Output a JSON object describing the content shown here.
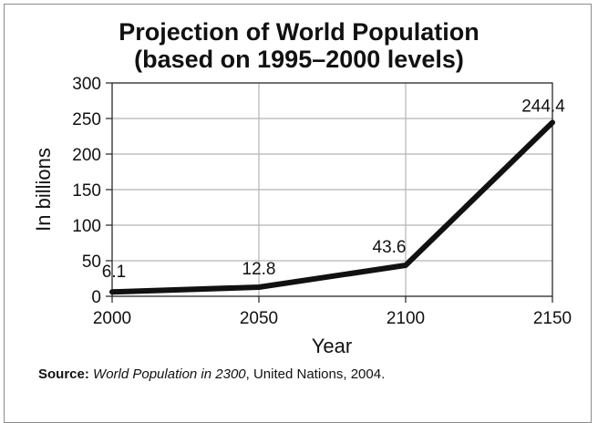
{
  "chart_data": {
    "type": "line",
    "title": "Projection of World Population",
    "subtitle": "(based on 1995–2000 levels)",
    "xlabel": "Year",
    "ylabel": "In billions",
    "x": [
      2000,
      2050,
      2100,
      2150
    ],
    "xlim": [
      2000,
      2150
    ],
    "ylim": [
      0,
      300
    ],
    "yticks": [
      0,
      50,
      100,
      150,
      200,
      250,
      300
    ],
    "xticks": [
      2000,
      2050,
      2100,
      2150
    ],
    "grid": true,
    "series": [
      {
        "values": [
          6.1,
          12.8,
          43.6,
          244.4
        ],
        "labels": [
          "6.1",
          "12.8",
          "43.6",
          "244.4"
        ]
      }
    ],
    "line_color": "#111111",
    "grid_color": "#b5b5b5"
  },
  "source": {
    "prefix": "Source:",
    "title": "World Population in 2300",
    "rest": ", United Nations, 2004."
  }
}
